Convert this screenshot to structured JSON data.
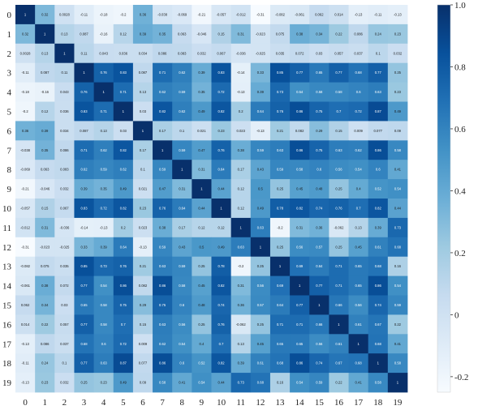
{
  "chart_data": {
    "type": "heatmap",
    "title": "",
    "xlabel": "",
    "ylabel": "",
    "x": [
      "0",
      "1",
      "2",
      "3",
      "4",
      "5",
      "6",
      "7",
      "8",
      "9",
      "10",
      "11",
      "12",
      "13",
      "14",
      "15",
      "16",
      "17",
      "18",
      "19"
    ],
    "y": [
      "0",
      "1",
      "2",
      "3",
      "4",
      "5",
      "6",
      "7",
      "8",
      "9",
      "10",
      "11",
      "12",
      "13",
      "14",
      "15",
      "16",
      "17",
      "18",
      "19"
    ],
    "colormap": "Blues",
    "vmin": -0.25,
    "vmax": 1.0,
    "colorbar_ticks": [
      "-0.2",
      "0",
      "0.2",
      "0.4",
      "0.6",
      "0.8",
      "1.0"
    ],
    "colorbar_tick_values": [
      -0.2,
      0,
      0.2,
      0.4,
      0.6,
      0.8,
      1.0
    ],
    "annotations": true,
    "values": [
      [
        1,
        0.32,
        0.0028,
        -0.11,
        -0.18,
        -0.2,
        0.36,
        -0.038,
        -0.069,
        -0.21,
        -0.057,
        -0.012,
        -0.31,
        -0.082,
        -0.061,
        0.062,
        0.014,
        -0.13,
        -0.11,
        -0.13
      ],
      [
        0.32,
        1,
        0.13,
        0.087,
        -0.16,
        0.12,
        0.39,
        0.35,
        0.063,
        -0.046,
        0.15,
        0.31,
        -0.023,
        0.075,
        0.38,
        0.34,
        0.22,
        0.086,
        0.24,
        0.23
      ],
      [
        0.0028,
        0.13,
        1,
        0.11,
        0.043,
        0.036,
        0.034,
        0.086,
        0.083,
        0.032,
        0.067,
        -0.036,
        -0.025,
        0.035,
        0.072,
        0.03,
        0.057,
        0.037,
        0.1,
        0.032
      ],
      [
        -0.11,
        0.087,
        0.11,
        1,
        0.76,
        0.83,
        0.087,
        0.71,
        0.62,
        0.39,
        0.83,
        -0.14,
        0.33,
        0.85,
        0.77,
        0.65,
        0.77,
        0.68,
        0.77,
        0.25
      ],
      [
        -0.18,
        -0.16,
        0.043,
        0.76,
        1,
        0.71,
        0.13,
        0.62,
        0.59,
        0.35,
        0.72,
        -0.13,
        0.39,
        0.73,
        0.54,
        0.58,
        0.58,
        0.6,
        0.63,
        0.23
      ],
      [
        -0.2,
        0.12,
        0.036,
        0.83,
        0.71,
        1,
        0.03,
        0.82,
        0.62,
        0.49,
        0.82,
        0.2,
        0.64,
        0.76,
        0.86,
        0.75,
        0.7,
        0.72,
        0.87,
        0.49
      ],
      [
        0.36,
        0.39,
        0.034,
        0.087,
        0.13,
        0.03,
        1,
        0.17,
        0.1,
        0.021,
        0.23,
        0.023,
        -0.13,
        0.21,
        0.082,
        0.29,
        0.15,
        0.009,
        0.077,
        0.09
      ],
      [
        -0.038,
        0.35,
        0.086,
        0.71,
        0.62,
        0.82,
        0.17,
        1,
        0.59,
        0.47,
        0.76,
        0.38,
        0.59,
        0.63,
        0.86,
        0.75,
        0.63,
        0.62,
        0.86,
        0.58
      ],
      [
        -0.069,
        0.063,
        0.083,
        0.62,
        0.59,
        0.62,
        0.1,
        0.59,
        1,
        0.31,
        0.64,
        0.17,
        0.43,
        0.59,
        0.58,
        0.6,
        0.56,
        0.54,
        0.6,
        0.41
      ],
      [
        -0.21,
        -0.046,
        0.032,
        0.39,
        0.35,
        0.49,
        0.021,
        0.47,
        0.31,
        1,
        0.44,
        0.12,
        0.5,
        0.25,
        0.45,
        0.48,
        0.25,
        0.4,
        0.52,
        0.54
      ],
      [
        -0.057,
        0.15,
        0.067,
        0.83,
        0.72,
        0.82,
        0.23,
        0.76,
        0.64,
        0.44,
        1,
        0.12,
        0.49,
        0.78,
        0.82,
        0.74,
        0.76,
        0.7,
        0.82,
        0.44
      ],
      [
        -0.012,
        0.31,
        -0.036,
        -0.14,
        -0.13,
        0.2,
        0.023,
        0.38,
        0.17,
        0.12,
        0.12,
        1,
        0.63,
        -0.2,
        0.31,
        0.36,
        -0.062,
        0.13,
        0.39,
        0.73
      ],
      [
        -0.31,
        -0.023,
        -0.025,
        0.33,
        0.39,
        0.64,
        -0.13,
        0.59,
        0.43,
        0.5,
        0.49,
        0.63,
        1,
        0.25,
        0.56,
        0.57,
        0.25,
        0.45,
        0.61,
        0.68
      ],
      [
        -0.082,
        0.075,
        0.035,
        0.85,
        0.73,
        0.76,
        0.21,
        0.63,
        0.59,
        0.25,
        0.78,
        -0.2,
        0.25,
        1,
        0.69,
        0.64,
        0.71,
        0.65,
        0.68,
        0.16
      ],
      [
        -0.061,
        0.38,
        0.072,
        0.77,
        0.54,
        0.86,
        0.082,
        0.86,
        0.58,
        0.45,
        0.82,
        0.31,
        0.56,
        0.69,
        1,
        0.77,
        0.71,
        0.65,
        0.86,
        0.54
      ],
      [
        0.062,
        0.34,
        0.03,
        0.65,
        0.58,
        0.75,
        0.29,
        0.75,
        0.6,
        0.48,
        0.74,
        0.36,
        0.57,
        0.64,
        0.77,
        1,
        0.66,
        0.56,
        0.74,
        0.59
      ],
      [
        0.014,
        0.22,
        0.057,
        0.77,
        0.58,
        0.7,
        0.15,
        0.63,
        0.56,
        0.25,
        0.76,
        -0.062,
        0.25,
        0.71,
        0.71,
        0.66,
        1,
        0.61,
        0.67,
        0.22
      ],
      [
        -0.13,
        0.086,
        0.037,
        0.68,
        0.6,
        0.72,
        0.009,
        0.62,
        0.54,
        0.4,
        0.7,
        0.13,
        0.45,
        0.65,
        0.65,
        0.56,
        0.61,
        1,
        0.68,
        0.41
      ],
      [
        -0.11,
        0.24,
        0.1,
        0.77,
        0.63,
        0.87,
        0.077,
        0.86,
        0.6,
        0.52,
        0.82,
        0.39,
        0.61,
        0.68,
        0.86,
        0.74,
        0.67,
        0.68,
        1,
        0.58
      ],
      [
        -0.13,
        0.23,
        0.032,
        0.25,
        0.23,
        0.49,
        0.09,
        0.58,
        0.41,
        0.54,
        0.44,
        0.73,
        0.68,
        0.16,
        0.54,
        0.59,
        0.22,
        0.41,
        0.58,
        1
      ]
    ]
  }
}
